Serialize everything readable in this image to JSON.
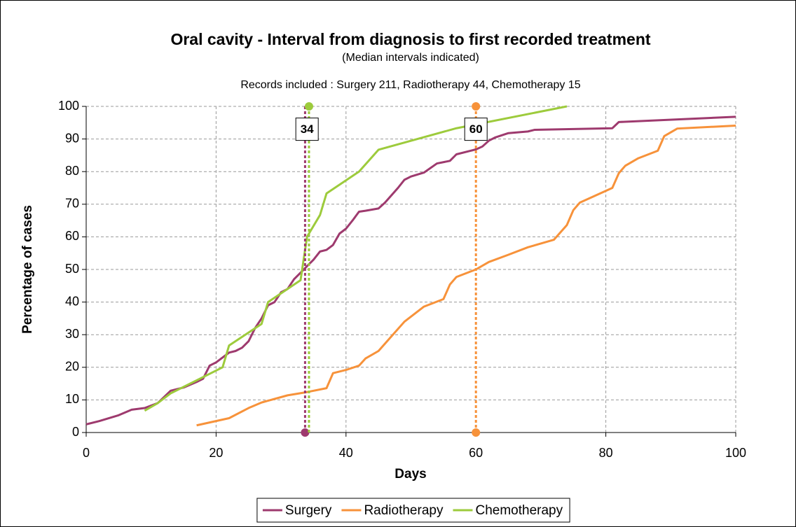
{
  "chart_data": {
    "type": "line",
    "title": "Oral cavity - Interval from diagnosis to first recorded treatment",
    "subtitle": "(Median intervals indicated)",
    "note": "Records included : Surgery 211, Radiotherapy 44, Chemotherapy 15",
    "xlabel": "Days",
    "ylabel": "Percentage of cases",
    "xlim": [
      0,
      100
    ],
    "xticks": [
      0,
      20,
      40,
      60,
      80,
      100
    ],
    "ylim": [
      0,
      100
    ],
    "yticks": [
      0,
      10,
      20,
      30,
      40,
      50,
      60,
      70,
      80,
      90,
      100
    ],
    "grid": true,
    "legend": "bottom",
    "median_labels": [
      34,
      60
    ],
    "median_label_y": 93,
    "series": [
      {
        "name": "Surgery",
        "color": "#9e3a6e",
        "x": [
          0,
          2,
          5,
          7,
          9,
          11,
          13,
          15,
          17,
          18,
          19,
          20,
          21,
          22,
          23,
          24,
          25,
          26,
          27,
          28,
          29,
          30,
          31,
          32,
          33,
          34,
          35,
          36,
          37,
          38,
          39,
          40,
          41,
          42,
          43,
          45,
          46,
          48,
          49,
          50,
          52,
          54,
          56,
          57,
          59,
          60,
          61,
          62,
          63,
          65,
          68,
          69,
          81,
          82,
          100
        ],
        "y": [
          2.5,
          3.5,
          5.3,
          7,
          7.5,
          9,
          12.8,
          13.8,
          15.5,
          16.5,
          20.5,
          21.5,
          23,
          24.5,
          25,
          26,
          28,
          32,
          35,
          39,
          40,
          43,
          44,
          47,
          49,
          51,
          53,
          55.5,
          56,
          57.5,
          61,
          62.5,
          65,
          67.7,
          68,
          68.7,
          70.5,
          75,
          77.5,
          78.5,
          79.7,
          82.5,
          83.3,
          85.3,
          86.3,
          86.8,
          87.7,
          89.5,
          90.5,
          91.8,
          92.3,
          92.8,
          93.3,
          95.2,
          96.8
        ],
        "median": 33.7,
        "median_points": [
          0
        ]
      },
      {
        "name": "Radiotherapy",
        "color": "#f7923a",
        "x": [
          17,
          22,
          25,
          27,
          29,
          31,
          34,
          37,
          38,
          40,
          42,
          43,
          45,
          47,
          49,
          52,
          55,
          56,
          57,
          60,
          62,
          65,
          68,
          72,
          74,
          75,
          76,
          81,
          82,
          83,
          85,
          88,
          89,
          91,
          100
        ],
        "y": [
          2.2,
          4.4,
          7.5,
          9.2,
          10.3,
          11.4,
          12.4,
          13.6,
          18.2,
          19.2,
          20.5,
          22.7,
          25,
          29.5,
          34,
          38.6,
          40.9,
          45.4,
          47.7,
          50,
          52.3,
          54.5,
          56.8,
          59.1,
          63.6,
          68.2,
          70.5,
          75,
          79.5,
          81.8,
          84.1,
          86.4,
          90.9,
          93.2,
          94.1
        ],
        "median": 60,
        "median_points": [
          0,
          100
        ]
      },
      {
        "name": "Chemotherapy",
        "color": "#9dcb3c",
        "x": [
          9,
          11,
          13,
          18,
          21,
          22,
          27,
          28,
          33,
          34,
          36,
          37,
          42,
          45,
          57,
          74
        ],
        "y": [
          6.7,
          9,
          12,
          17,
          20,
          26.7,
          33.3,
          40,
          46.7,
          60,
          66.7,
          73.3,
          80,
          86.7,
          93.3,
          100
        ],
        "median": 34.3,
        "median_points": [
          100
        ]
      }
    ]
  }
}
